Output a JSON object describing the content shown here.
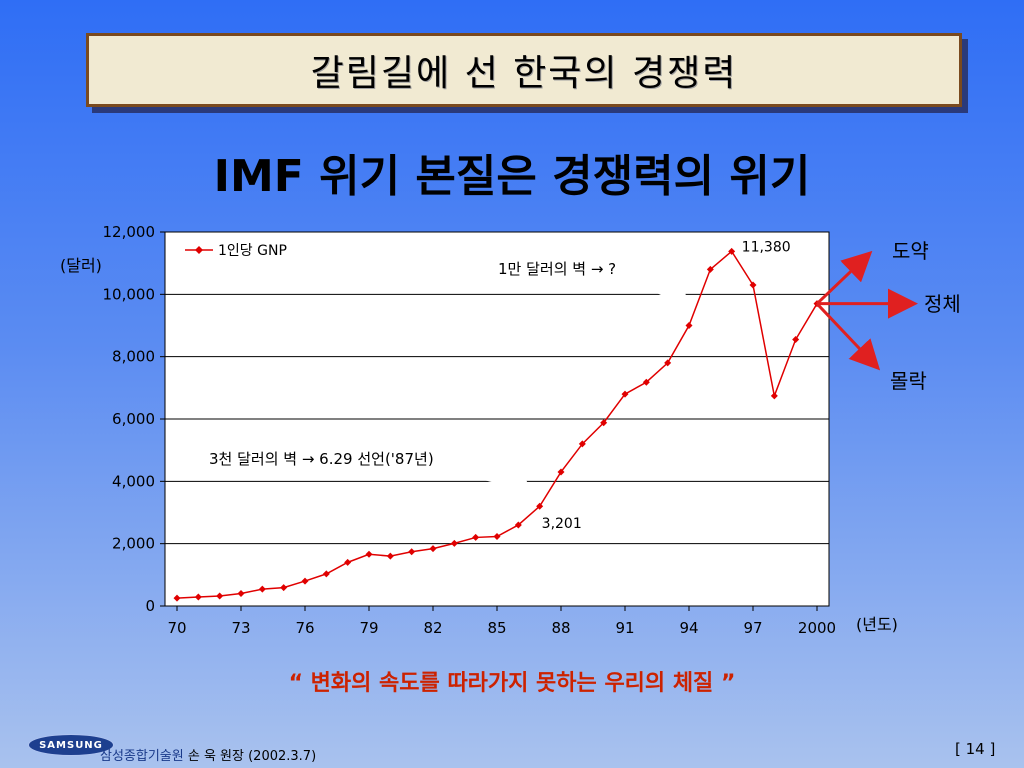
{
  "title": "갈림길에 선 한국의 경쟁력",
  "subtitle": "IMF 위기 본질은 경쟁력의 위기",
  "unit_label": "(달러)",
  "year_unit": "(년도)",
  "callouts": {
    "wall_10k": "1만 달러의 벽 → ?",
    "wall_3k": "3천 달러의 벽 → 6.29 선언('87년)"
  },
  "outcomes": {
    "up": "도약",
    "flat": "정체",
    "down": "몰락"
  },
  "quote": "“ 변화의 속도를 따라가지 못하는 우리의 체질 ”",
  "logo": "SAMSUNG",
  "footer": {
    "org": "삼성종합기술원",
    "author": "손 욱 원장 (2002.3.7)"
  },
  "page_number": "[  14  ]",
  "colors": {
    "series": "#e00000",
    "arrow": "#e02020",
    "quote": "#cc2200"
  },
  "chart_data": {
    "type": "line",
    "ylim": [
      0,
      12000
    ],
    "yticks": [
      "0",
      "2,000",
      "4,000",
      "6,000",
      "8,000",
      "10,000",
      "12,000"
    ],
    "yticks_values": [
      0,
      2000,
      4000,
      6000,
      8000,
      10000,
      12000
    ],
    "xlim": [
      1970,
      2000
    ],
    "xticks": [
      "70",
      "73",
      "76",
      "79",
      "82",
      "85",
      "88",
      "91",
      "94",
      "97",
      "2000"
    ],
    "xticks_values": [
      1970,
      1973,
      1976,
      1979,
      1982,
      1985,
      1988,
      1991,
      1994,
      1997,
      2000
    ],
    "legend_position": "top-left",
    "series": [
      {
        "name": "1인당 GNP",
        "x": [
          1970,
          1971,
          1972,
          1973,
          1974,
          1975,
          1976,
          1977,
          1978,
          1979,
          1980,
          1981,
          1982,
          1983,
          1984,
          1985,
          1986,
          1987,
          1988,
          1989,
          1990,
          1991,
          1992,
          1993,
          1994,
          1995,
          1996,
          1997,
          1998,
          1999,
          2000
        ],
        "values": [
          254,
          290,
          320,
          400,
          540,
          590,
          800,
          1030,
          1400,
          1660,
          1600,
          1740,
          1840,
          2010,
          2200,
          2230,
          2600,
          3201,
          4300,
          5200,
          5880,
          6800,
          7180,
          7800,
          9000,
          10800,
          11380,
          10300,
          6740,
          8550,
          9700
        ]
      }
    ],
    "annotations": [
      {
        "x": 1987,
        "label": "3,201"
      },
      {
        "x": 1996,
        "label": "11,380"
      }
    ]
  }
}
